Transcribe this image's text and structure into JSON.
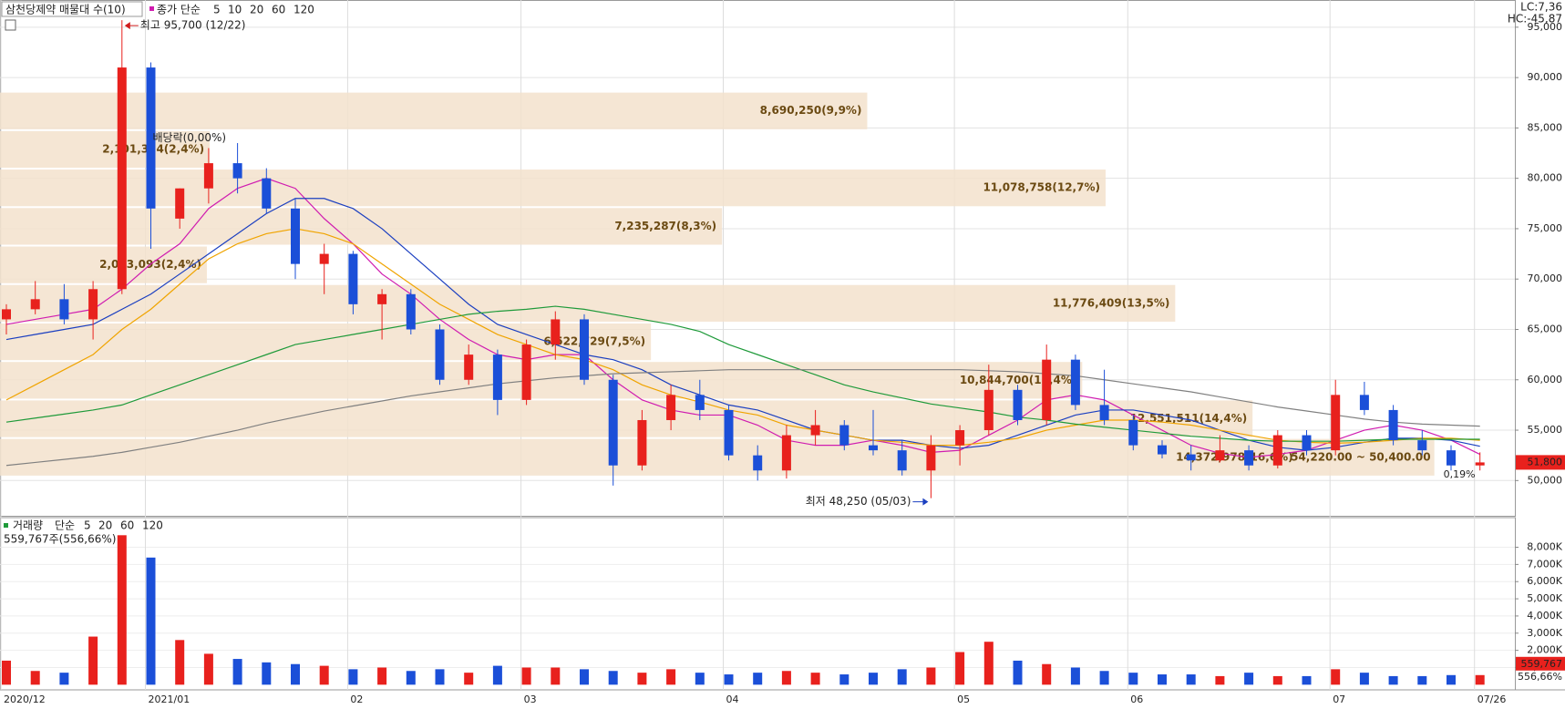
{
  "chart_data": {
    "type": "candlestick",
    "title": "삼천당제약 매물대 수(10)",
    "legend_prefix": "종가 단순",
    "legend_color": "#d01cb0",
    "categories": [
      "2020/12",
      null,
      null,
      null,
      null,
      "2021/01",
      null,
      null,
      null,
      null,
      null,
      null,
      "02",
      null,
      null,
      null,
      null,
      null,
      "03",
      null,
      null,
      null,
      null,
      null,
      null,
      "04",
      null,
      null,
      null,
      null,
      null,
      null,
      null,
      "05",
      null,
      null,
      null,
      null,
      null,
      "06",
      null,
      null,
      null,
      null,
      null,
      null,
      "07",
      null,
      null,
      null,
      null,
      "07/26"
    ],
    "open": [
      66000,
      67000,
      68000,
      66000,
      69000,
      91000,
      76000,
      79000,
      81500,
      80000,
      77000,
      71500,
      72500,
      67500,
      68500,
      65000,
      60000,
      62500,
      58000,
      63500,
      66000,
      60000,
      51500,
      56000,
      58500,
      57000,
      52500,
      51000,
      54500,
      55500,
      53500,
      53000,
      51000,
      53500,
      55000,
      59000,
      56000,
      62000,
      57500,
      56000,
      53500,
      52600,
      52000,
      53000,
      51500,
      54500,
      53000,
      58500,
      57000,
      54000,
      53000,
      51500
    ],
    "high": [
      67500,
      69800,
      69500,
      69800,
      95700,
      91500,
      79000,
      83000,
      83500,
      81000,
      78000,
      73500,
      72800,
      69000,
      69000,
      65500,
      63500,
      63000,
      64000,
      66800,
      66500,
      60500,
      57000,
      59500,
      60000,
      57500,
      53500,
      55500,
      57000,
      56000,
      57000,
      54000,
      54500,
      55500,
      61500,
      59500,
      63500,
      62500,
      61000,
      56500,
      54000,
      53500,
      54500,
      53500,
      55000,
      55000,
      60000,
      59800,
      57500,
      55000,
      53500,
      52800
    ],
    "low": [
      64500,
      66500,
      65500,
      64000,
      68500,
      73000,
      75000,
      77500,
      78500,
      76500,
      70000,
      68500,
      66500,
      64000,
      64500,
      59500,
      59500,
      56500,
      57500,
      62000,
      59500,
      49500,
      51000,
      55000,
      56000,
      52000,
      50000,
      50200,
      53500,
      53000,
      52500,
      50500,
      48250,
      51500,
      54500,
      55500,
      55500,
      57000,
      55500,
      53000,
      52200,
      51000,
      51800,
      51000,
      51200,
      52500,
      52500,
      56500,
      53500,
      52500,
      51000,
      51000
    ],
    "close": [
      67000,
      68000,
      66000,
      69000,
      91000,
      77000,
      79000,
      81500,
      80000,
      77000,
      71500,
      72500,
      67500,
      68500,
      65000,
      60000,
      62500,
      58000,
      63500,
      66000,
      60000,
      51500,
      56000,
      58500,
      57000,
      52500,
      51000,
      54500,
      55500,
      53500,
      53000,
      51000,
      53500,
      55000,
      59000,
      56000,
      62000,
      57500,
      56000,
      53500,
      52600,
      52000,
      53000,
      51500,
      54500,
      53000,
      58500,
      57000,
      54000,
      53000,
      51500,
      51800
    ],
    "up_color": "#e8211d",
    "down_color": "#1b4fd8",
    "ma_series": [
      {
        "name": "5",
        "color": "#d01cb0",
        "values": [
          65500,
          66000,
          66500,
          67000,
          69000,
          71500,
          73500,
          77000,
          79000,
          80000,
          79000,
          76000,
          73500,
          70500,
          68500,
          66000,
          64000,
          62500,
          62000,
          62500,
          62500,
          60000,
          58000,
          57000,
          56500,
          56500,
          55500,
          54000,
          53500,
          53500,
          54000,
          53500,
          52800,
          53000,
          54500,
          56000,
          58000,
          58500,
          58000,
          56500,
          55000,
          53500,
          52700,
          52300,
          52600,
          53000,
          54000,
          55000,
          55500,
          55000,
          54000,
          52600
        ]
      },
      {
        "name": "10",
        "color": "#1b3fc0",
        "values": [
          64000,
          64500,
          65000,
          65500,
          67000,
          68500,
          70500,
          72500,
          74500,
          76500,
          78000,
          78000,
          77000,
          75000,
          72500,
          70000,
          67500,
          65500,
          64500,
          63500,
          62500,
          62000,
          61000,
          59500,
          58500,
          57500,
          57000,
          56000,
          55000,
          54500,
          54000,
          54000,
          53500,
          53200,
          53500,
          54500,
          55500,
          56500,
          57000,
          57000,
          56500,
          56000,
          55000,
          54000,
          53300,
          53000,
          53300,
          53800,
          54200,
          54200,
          54000,
          53400
        ]
      },
      {
        "name": "20",
        "color": "#f0a400",
        "values": [
          58000,
          59500,
          61000,
          62500,
          65000,
          67000,
          69500,
          72000,
          73500,
          74500,
          75000,
          74500,
          73500,
          71500,
          69500,
          67500,
          66000,
          64500,
          63500,
          62500,
          62000,
          61000,
          59500,
          58500,
          57800,
          57000,
          56500,
          55500,
          55000,
          54500,
          54000,
          53800,
          53500,
          53500,
          53800,
          54200,
          55000,
          55500,
          56000,
          56000,
          55800,
          55500,
          55000,
          54500,
          54000,
          53800,
          53700,
          53800,
          54000,
          54200,
          54200,
          54000
        ]
      },
      {
        "name": "60",
        "color": "#1f9a3a",
        "values": [
          55800,
          56200,
          56600,
          57000,
          57500,
          58500,
          59500,
          60500,
          61500,
          62500,
          63500,
          64000,
          64500,
          65000,
          65500,
          66000,
          66500,
          66800,
          67000,
          67300,
          67000,
          66500,
          66000,
          65500,
          64800,
          63500,
          62500,
          61500,
          60500,
          59500,
          58800,
          58200,
          57600,
          57200,
          56800,
          56300,
          56000,
          55600,
          55300,
          55000,
          54700,
          54400,
          54200,
          54000,
          53900,
          53900,
          53900,
          54000,
          54100,
          54100,
          54100,
          54100
        ]
      },
      {
        "name": "120",
        "color": "#808080",
        "values": [
          51500,
          51800,
          52100,
          52400,
          52800,
          53300,
          53800,
          54400,
          55000,
          55700,
          56300,
          56900,
          57400,
          57900,
          58400,
          58800,
          59200,
          59600,
          59900,
          60200,
          60400,
          60600,
          60700,
          60800,
          60900,
          61000,
          61000,
          61000,
          61000,
          61000,
          61000,
          61000,
          61000,
          61000,
          60900,
          60800,
          60600,
          60400,
          60000,
          59600,
          59200,
          58800,
          58300,
          57800,
          57300,
          56900,
          56500,
          56100,
          55800,
          55600,
          55500,
          55400
        ]
      }
    ],
    "ylim": [
      46500,
      97700
    ],
    "yticks": [
      {
        "value": 50000,
        "label": "50,000"
      },
      {
        "value": 55000,
        "label": "55,000"
      },
      {
        "value": 60000,
        "label": "60,000"
      },
      {
        "value": 65000,
        "label": "65,000"
      },
      {
        "value": 70000,
        "label": "70,000"
      },
      {
        "value": 75000,
        "label": "75,000"
      },
      {
        "value": 80000,
        "label": "80,000"
      },
      {
        "value": 85000,
        "label": "85,000"
      },
      {
        "value": 90000,
        "label": "90,000"
      },
      {
        "value": 95000,
        "label": "95,000"
      }
    ],
    "last_price": {
      "value": 51800,
      "label": "51,800"
    },
    "lc_label": "LC:7,36",
    "hc_label": "HC:-45,87",
    "high_label": "최고 95,700 (12/22)",
    "low_label": "최저 48,250 (05/03)",
    "dividend_label": "배당락(0,00%)",
    "profile": {
      "bins": [
        50400,
        54220,
        58040,
        61860,
        65680,
        69500,
        73320,
        77140,
        80960,
        84780,
        88600
      ],
      "values": [
        14372978,
        12551511,
        10844700,
        6522729,
        11776409,
        2073093,
        7235287,
        11078758,
        2101334,
        8690250
      ],
      "value_labels": [
        "14,372,978(16,6%)",
        "12,551,511(14,4%)",
        "10,844,700(12,4%)",
        "6,522,729(7,5%)",
        "11,776,409(13,5%)",
        "2,073,093(2,4%)",
        "7,235,287(8,3%)",
        "11,078,758(12,7%)",
        "2,101,334(2,4%)",
        "8,690,250(9,9%)"
      ],
      "xlim": [
        0,
        15180000
      ],
      "color": "#f3e2cc",
      "range_label": "54,220.00 ~ 50,400.00",
      "ratio_label": "0,19%"
    },
    "volume": {
      "label": "거래량",
      "legend_prefix": "단순",
      "legend": [
        {
          "name": "5",
          "color": "#d01cb0"
        },
        {
          "name": "20",
          "color": "#f0a400"
        },
        {
          "name": "60",
          "color": "#1f9a3a"
        },
        {
          "name": "120",
          "color": "#808080"
        }
      ],
      "summary": "559,767주(556,66%)",
      "values": [
        1400,
        800,
        700,
        2800,
        8700,
        7400,
        2600,
        1800,
        1500,
        1300,
        1200,
        1100,
        900,
        1000,
        800,
        900,
        700,
        1100,
        1000,
        1000,
        900,
        800,
        700,
        900,
        700,
        600,
        700,
        800,
        700,
        600,
        700,
        900,
        1000,
        1900,
        2500,
        1400,
        1200,
        1000,
        800,
        700,
        600,
        600,
        500,
        700,
        500,
        500,
        900,
        700,
        500,
        500,
        560,
        559.767
      ],
      "last_label": "559,767",
      "ratio_label": "556,66%",
      "ylim": [
        -300,
        9300
      ],
      "yticks": [
        {
          "value": 1000,
          "label": "1,000K"
        },
        {
          "value": 2000,
          "label": "2,000K"
        },
        {
          "value": 3000,
          "label": "3,000K"
        },
        {
          "value": 4000,
          "label": "4,000K"
        },
        {
          "value": 5000,
          "label": "5,000K"
        },
        {
          "value": 6000,
          "label": "6,000K"
        },
        {
          "value": 7000,
          "label": "7,000K"
        },
        {
          "value": 8000,
          "label": "8,000K"
        }
      ]
    }
  }
}
